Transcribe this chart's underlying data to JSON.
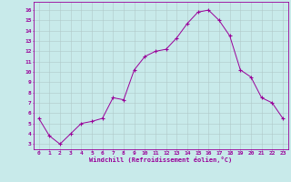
{
  "x": [
    0,
    1,
    2,
    3,
    4,
    5,
    6,
    7,
    8,
    9,
    10,
    11,
    12,
    13,
    14,
    15,
    16,
    17,
    18,
    19,
    20,
    21,
    22,
    23
  ],
  "y": [
    5.5,
    3.8,
    3.0,
    4.0,
    5.0,
    5.2,
    5.5,
    7.5,
    7.3,
    10.2,
    11.5,
    12.0,
    12.2,
    13.3,
    14.7,
    15.8,
    16.0,
    15.0,
    13.5,
    10.2,
    9.5,
    7.5,
    7.0,
    5.5
  ],
  "line_color": "#990099",
  "marker": "+",
  "marker_color": "#990099",
  "bg_color": "#c8eaea",
  "grid_color": "#b0c8c8",
  "xlabel": "Windchill (Refroidissement éolien,°C)",
  "xlabel_color": "#990099",
  "tick_color": "#990099",
  "ylim": [
    2.5,
    16.8
  ],
  "xlim": [
    -0.5,
    23.5
  ],
  "yticks": [
    3,
    4,
    5,
    6,
    7,
    8,
    9,
    10,
    11,
    12,
    13,
    14,
    15,
    16
  ],
  "xticks": [
    0,
    1,
    2,
    3,
    4,
    5,
    6,
    7,
    8,
    9,
    10,
    11,
    12,
    13,
    14,
    15,
    16,
    17,
    18,
    19,
    20,
    21,
    22,
    23
  ],
  "spine_color": "#990099"
}
